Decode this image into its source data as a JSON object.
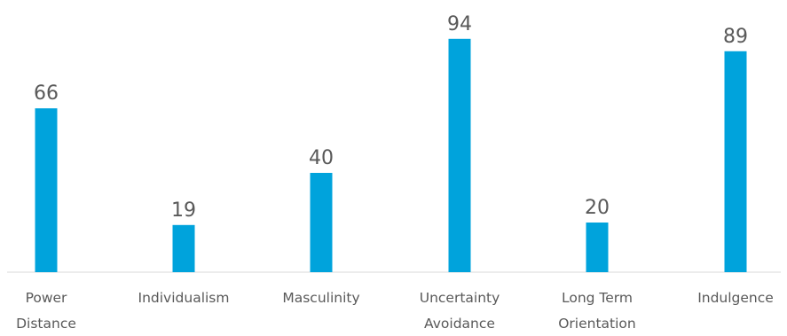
{
  "chart_data": {
    "type": "bar",
    "categories": [
      [
        "Power",
        "Distance"
      ],
      [
        "Individualism"
      ],
      [
        "Masculinity"
      ],
      [
        "Uncertainty",
        "Avoidance"
      ],
      [
        "Long Term",
        "Orientation"
      ],
      [
        "Indulgence"
      ]
    ],
    "values": [
      66,
      19,
      40,
      94,
      20,
      89
    ],
    "title": "",
    "xlabel": "",
    "ylabel": "",
    "ylim": [
      0,
      100
    ],
    "grid": false,
    "legend": "none",
    "data_labels": true,
    "bar_color": "#00A3DC",
    "text_color": "#595959",
    "baseline_color": "#D9D9D9"
  }
}
